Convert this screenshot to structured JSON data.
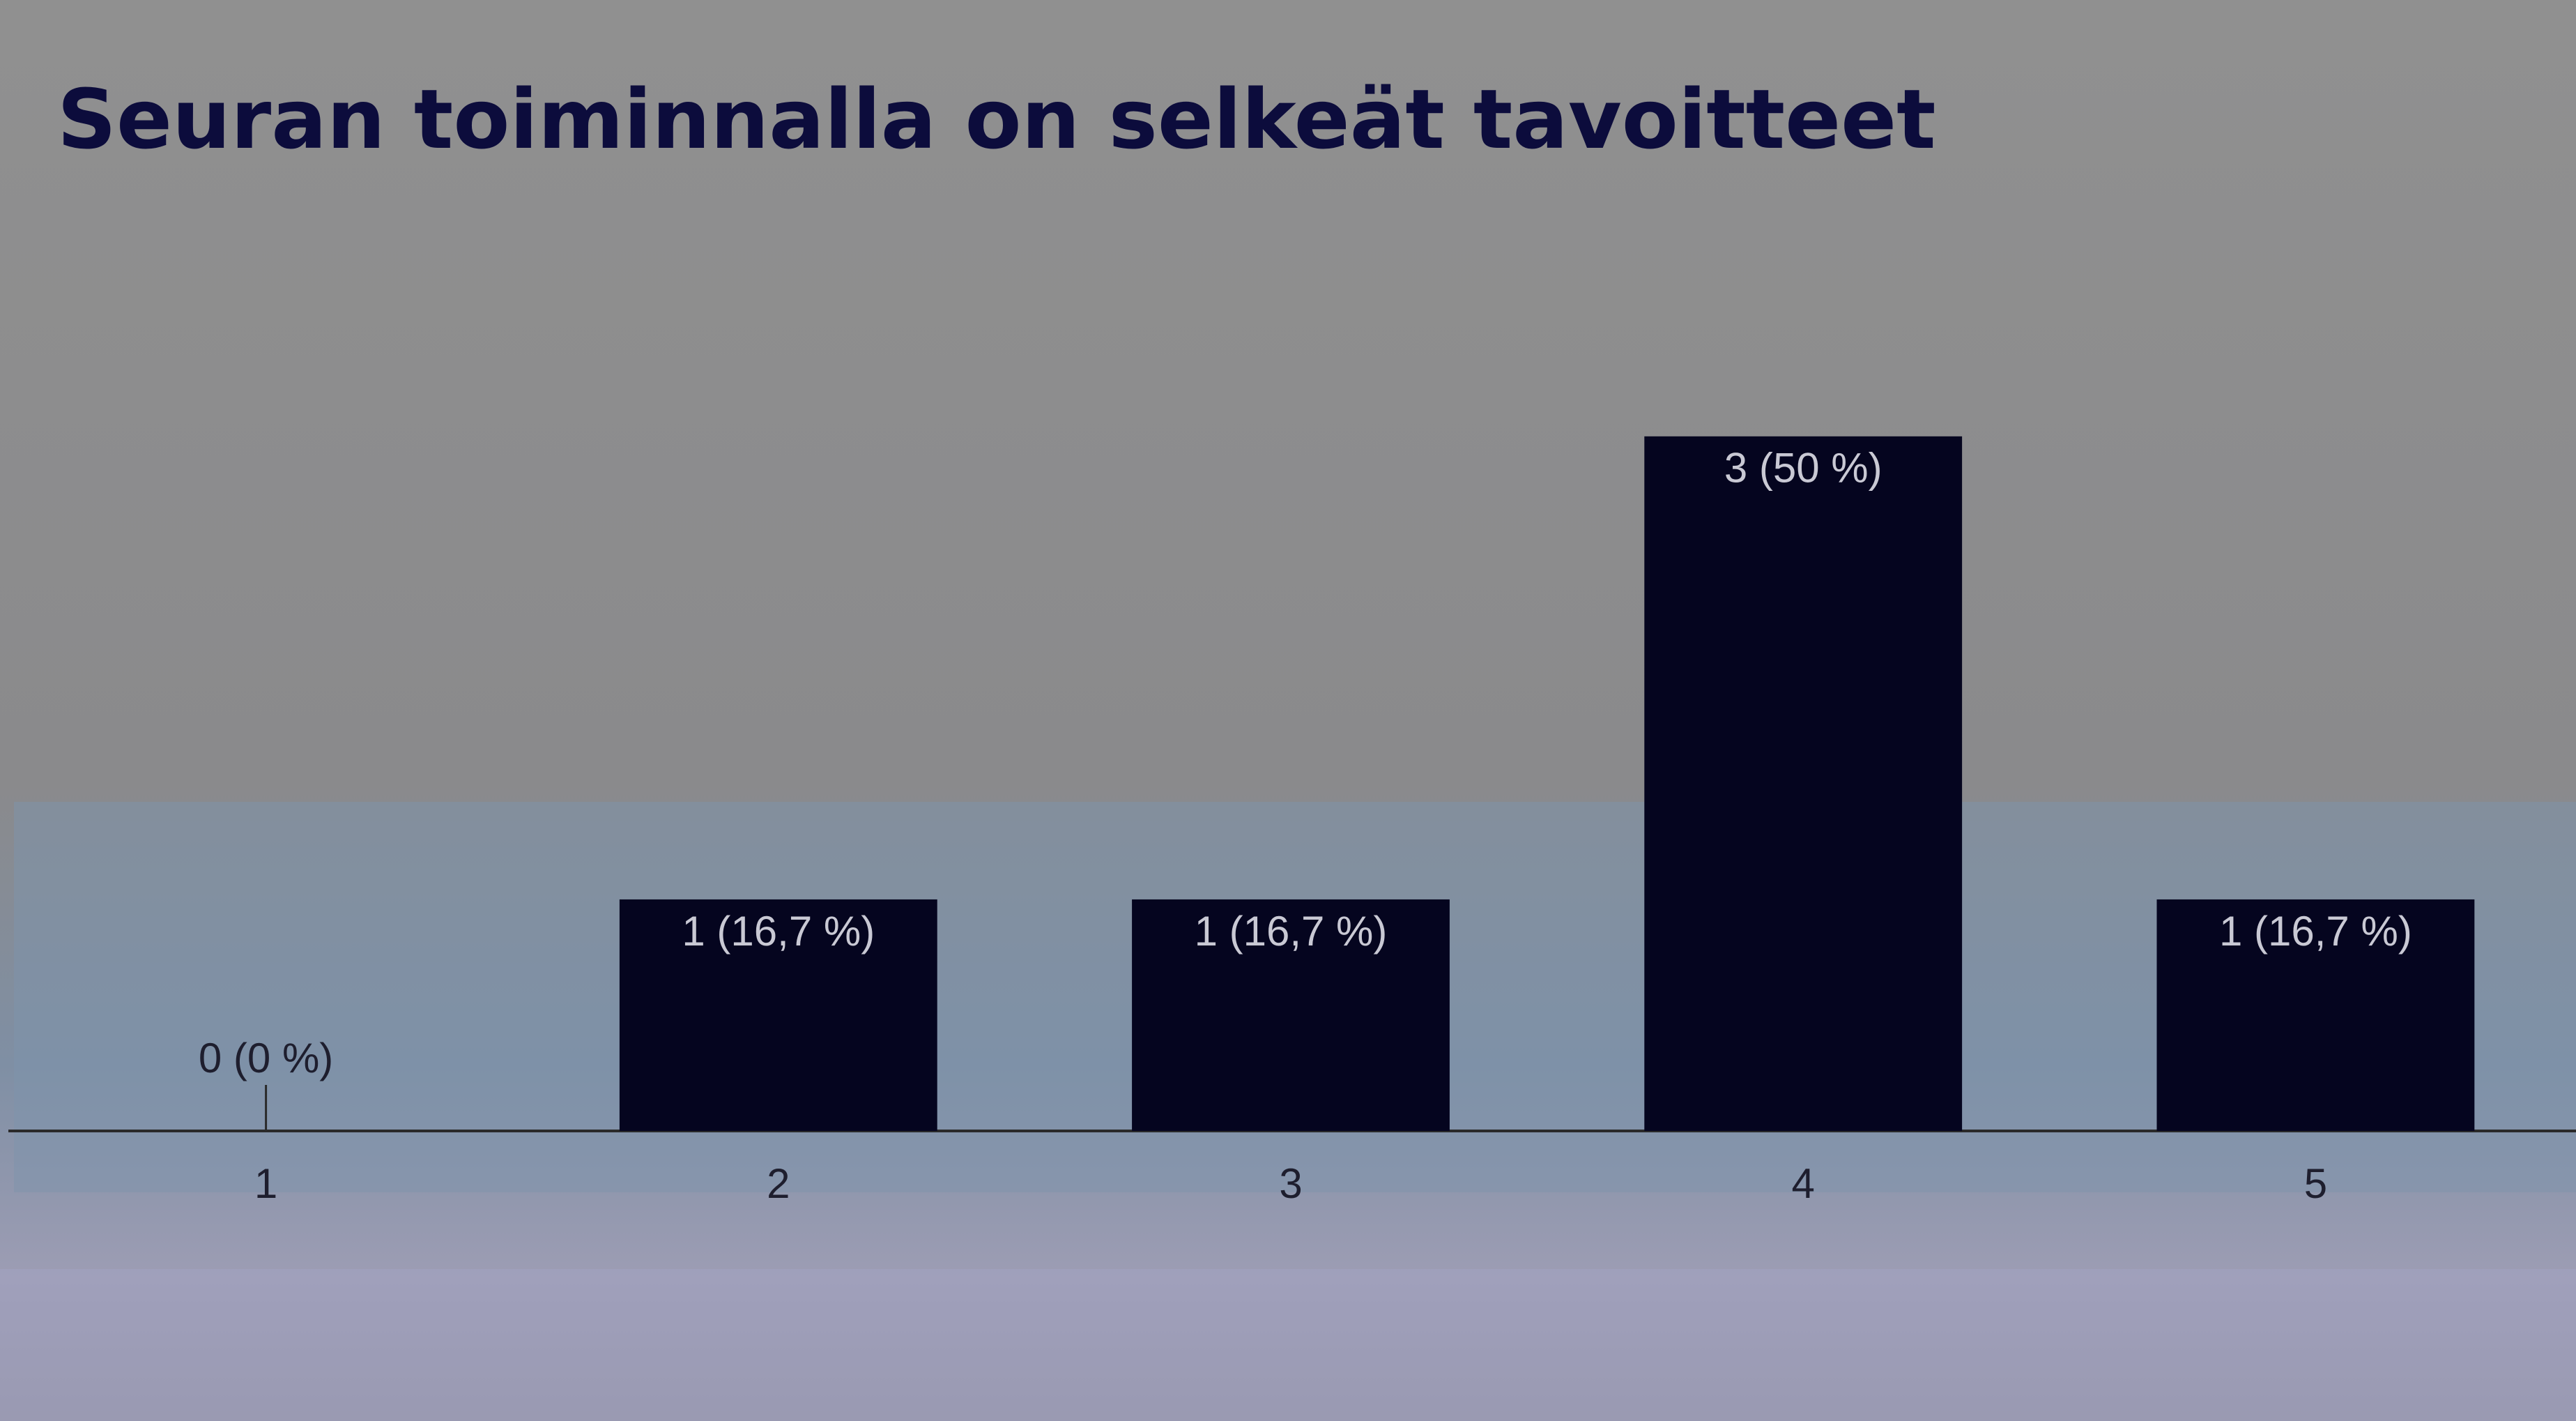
{
  "chart_data": {
    "type": "bar",
    "title": "Seuran toiminnalla on selkeät tavoitteet",
    "categories": [
      "1",
      "2",
      "3",
      "4",
      "5"
    ],
    "values": [
      0,
      1,
      1,
      3,
      1
    ],
    "value_labels": [
      "0 (0 %)",
      "1 (16,7 %)",
      "1 (16,7 %)",
      "3 (50 %)",
      "1 (16,7 %)"
    ],
    "color": "#05051f",
    "ylim": [
      0,
      3.4
    ]
  }
}
